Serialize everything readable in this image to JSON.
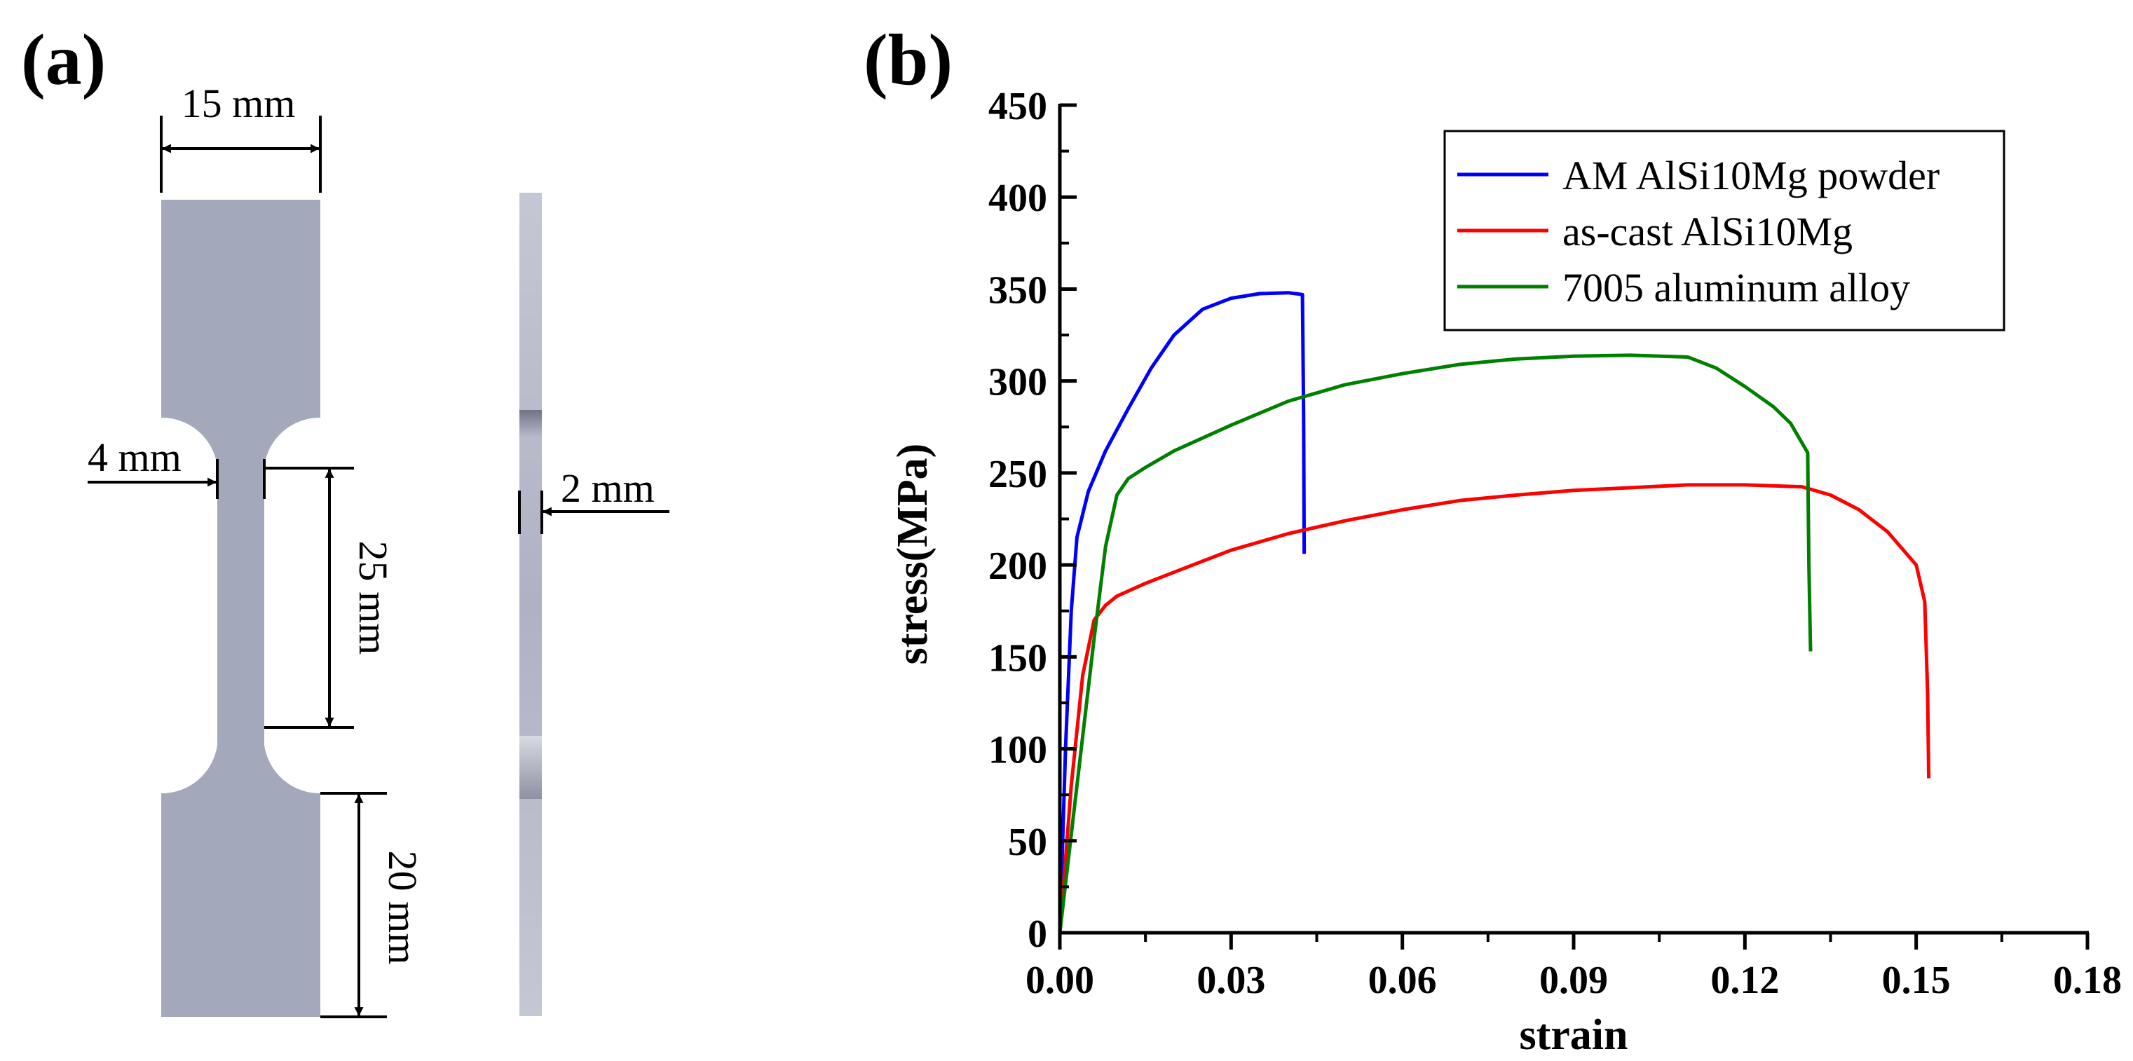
{
  "panel_a": {
    "label": "(a)",
    "dimensions": {
      "grip_width": "15 mm",
      "gauge_width": "4 mm",
      "gauge_length": "25 mm",
      "grip_length": "20 mm",
      "thickness": "2 mm"
    },
    "colors": {
      "specimen": "#a3a9bb",
      "specimen_side": "#a9adc0",
      "dimension_line": "#000000"
    }
  },
  "panel_b": {
    "label": "(b)"
  },
  "chart_data": {
    "type": "line",
    "title": "",
    "xlabel": "strain",
    "ylabel": "stress(MPa)",
    "xlim": [
      0,
      0.18
    ],
    "ylim": [
      0,
      450
    ],
    "xticks": [
      "0.00",
      "0.03",
      "0.06",
      "0.09",
      "0.12",
      "0.15",
      "0.18"
    ],
    "yticks": [
      "0",
      "50",
      "100",
      "150",
      "200",
      "250",
      "300",
      "350",
      "400",
      "450"
    ],
    "legend_position": "top-right",
    "grid": false,
    "series": [
      {
        "name": "AM AlSi10Mg powder",
        "color": "#0000ff",
        "x": [
          0,
          0.001,
          0.002,
          0.003,
          0.005,
          0.008,
          0.012,
          0.016,
          0.02,
          0.025,
          0.03,
          0.035,
          0.04,
          0.0425,
          0.0427,
          0.0428
        ],
        "y": [
          0,
          100,
          175,
          215,
          240,
          262,
          285,
          307,
          325,
          339,
          345,
          347.5,
          348,
          347,
          280,
          206
        ]
      },
      {
        "name": "as-cast AlSi10Mg",
        "color": "#ff0000",
        "x": [
          0,
          0.002,
          0.004,
          0.006,
          0.008,
          0.01,
          0.015,
          0.02,
          0.03,
          0.04,
          0.05,
          0.06,
          0.07,
          0.08,
          0.09,
          0.1,
          0.11,
          0.12,
          0.13,
          0.135,
          0.14,
          0.145,
          0.15,
          0.1515,
          0.152,
          0.1522
        ],
        "y": [
          0,
          80,
          140,
          170,
          178,
          183,
          190,
          196,
          208,
          217,
          224,
          230,
          235,
          238,
          240.5,
          242,
          243.5,
          243.5,
          242.5,
          238,
          230,
          218,
          200,
          180,
          130,
          84
        ]
      },
      {
        "name": "7005 aluminum alloy",
        "color": "#008000",
        "x": [
          0,
          0.003,
          0.006,
          0.008,
          0.01,
          0.012,
          0.015,
          0.02,
          0.03,
          0.04,
          0.05,
          0.06,
          0.07,
          0.08,
          0.09,
          0.1,
          0.11,
          0.115,
          0.12,
          0.125,
          0.128,
          0.131,
          0.1312,
          0.1315
        ],
        "y": [
          0,
          80,
          160,
          210,
          238,
          247,
          253,
          262,
          276,
          289,
          298,
          304,
          309,
          312,
          313.5,
          314,
          313,
          307,
          297,
          286,
          277,
          261,
          200,
          153
        ]
      }
    ]
  }
}
